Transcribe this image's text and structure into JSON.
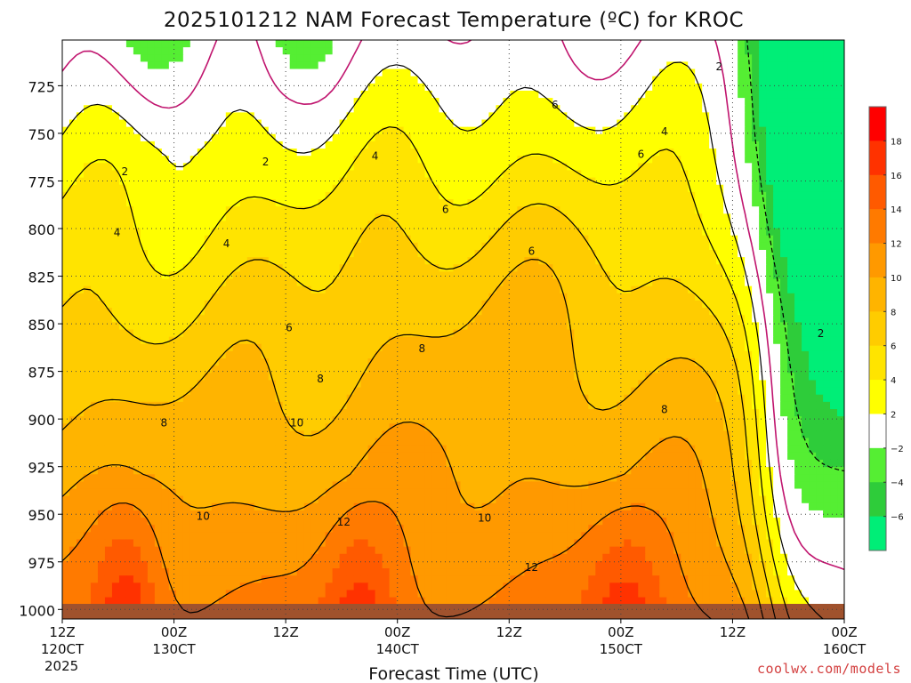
{
  "title": "2025101212 NAM Forecast Temperature (ºC) for KROC",
  "chart_data": {
    "type": "heatmap",
    "title": "2025101212 NAM Forecast Temperature (ºC) for KROC",
    "xlabel": "Forecast Time (UTC)",
    "ylabel": "",
    "x_ticks": [
      {
        "line1": "12Z",
        "line2": "120CT",
        "line3": "2025"
      },
      {
        "line1": "00Z",
        "line2": "130CT",
        "line3": ""
      },
      {
        "line1": "12Z",
        "line2": "",
        "line3": ""
      },
      {
        "line1": "00Z",
        "line2": "140CT",
        "line3": ""
      },
      {
        "line1": "12Z",
        "line2": "",
        "line3": ""
      },
      {
        "line1": "00Z",
        "line2": "150CT",
        "line3": ""
      },
      {
        "line1": "12Z",
        "line2": "",
        "line3": ""
      },
      {
        "line1": "00Z",
        "line2": "160CT",
        "line3": ""
      }
    ],
    "y_ticks": [
      "725",
      "750",
      "775",
      "800",
      "825",
      "850",
      "875",
      "900",
      "925",
      "950",
      "975",
      "1000"
    ],
    "pressure_range_hPa": [
      701,
      1005
    ],
    "forecast_hours": [
      0,
      84
    ],
    "colorbar": {
      "bins": [
        {
          "lo": -7,
          "hi": -6,
          "color": "#00ee77"
        },
        {
          "lo": -6,
          "hi": -4,
          "color": "#2ecc3a"
        },
        {
          "lo": -4,
          "hi": -2,
          "color": "#55ee33"
        },
        {
          "lo": -2,
          "hi": 2,
          "color": "#ffffff"
        },
        {
          "lo": 2,
          "hi": 4,
          "color": "#ffff00"
        },
        {
          "lo": 4,
          "hi": 6,
          "color": "#ffe400"
        },
        {
          "lo": 6,
          "hi": 8,
          "color": "#ffcc00"
        },
        {
          "lo": 8,
          "hi": 10,
          "color": "#ffb400"
        },
        {
          "lo": 10,
          "hi": 12,
          "color": "#ff9900"
        },
        {
          "lo": 12,
          "hi": 14,
          "color": "#ff7a00"
        },
        {
          "lo": 14,
          "hi": 16,
          "color": "#ff5a00"
        },
        {
          "lo": 16,
          "hi": 18,
          "color": "#ff3200"
        },
        {
          "lo": 18,
          "hi": 20,
          "color": "#ff0000"
        }
      ],
      "labels": [
        "18",
        "16",
        "14",
        "12",
        "10",
        "8",
        "6",
        "4",
        "2",
        "−2",
        "−4",
        "−6"
      ]
    },
    "contour_levels": [
      2,
      4,
      6,
      8,
      10,
      12
    ],
    "contour_labels": [
      {
        "text": "2",
        "x": 0.08,
        "y": 770
      },
      {
        "text": "2",
        "x": 0.26,
        "y": 765
      },
      {
        "text": "2",
        "x": 0.84,
        "y": 715
      },
      {
        "text": "2",
        "x": 0.97,
        "y": 855
      },
      {
        "text": "4",
        "x": 0.07,
        "y": 802
      },
      {
        "text": "4",
        "x": 0.21,
        "y": 808
      },
      {
        "text": "4",
        "x": 0.4,
        "y": 762
      },
      {
        "text": "4",
        "x": 0.77,
        "y": 749
      },
      {
        "text": "6",
        "x": 0.29,
        "y": 852
      },
      {
        "text": "6",
        "x": 0.49,
        "y": 790
      },
      {
        "text": "6",
        "x": 0.6,
        "y": 812
      },
      {
        "text": "6",
        "x": 0.63,
        "y": 735
      },
      {
        "text": "6",
        "x": 0.74,
        "y": 761
      },
      {
        "text": "8",
        "x": 0.13,
        "y": 902
      },
      {
        "text": "8",
        "x": 0.33,
        "y": 879
      },
      {
        "text": "8",
        "x": 0.46,
        "y": 863
      },
      {
        "text": "8",
        "x": 0.77,
        "y": 895
      },
      {
        "text": "10",
        "x": 0.18,
        "y": 951
      },
      {
        "text": "10",
        "x": 0.3,
        "y": 902
      },
      {
        "text": "10",
        "x": 0.54,
        "y": 952
      },
      {
        "text": "12",
        "x": 0.36,
        "y": 954
      },
      {
        "text": "12",
        "x": 0.6,
        "y": 978
      }
    ]
  },
  "credit": "coolwx.com/models"
}
